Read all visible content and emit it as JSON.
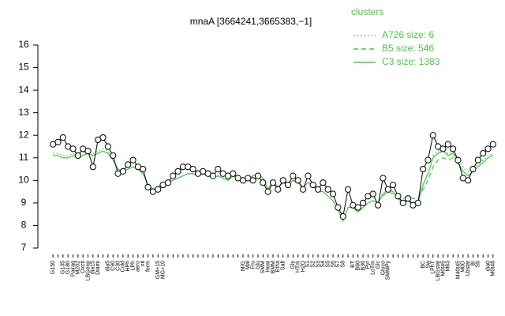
{
  "chart_data": {
    "type": "line",
    "title": "mnaA [3664241,3665383,−1]",
    "categories": [
      "G150",
      null,
      "G135",
      "G180",
      "Pairaq",
      "M202",
      "Oxctl",
      "LBGexp",
      "dia15",
      "Diami",
      null,
      "dia5",
      "C90",
      "C30",
      "Cold",
      "HPh",
      "LPh",
      "aero",
      "nit",
      "ferm",
      null,
      "GM+15",
      "MG+10",
      null,
      null,
      null,
      null,
      null,
      null,
      null,
      null,
      null,
      null,
      null,
      null,
      null,
      null,
      null,
      "M/G",
      "Mal",
      "Fru",
      "Glu",
      "SMM",
      "Heat",
      "BMM",
      "Etha",
      "Salt",
      null,
      "Gly",
      "HTm",
      "H2O",
      "S1",
      "S2",
      "S3",
      "S4",
      "S5",
      "S6",
      "S7",
      "S8",
      null,
      "BT",
      "B60",
      "B36",
      "Pyr",
      "LoTm",
      "Glc",
      "Gluco",
      "SMMPy",
      null,
      null,
      null,
      null,
      null,
      null,
      "BC",
      "Sw",
      "LPhT",
      "LBGstat",
      "M0t45",
      "M63",
      null,
      "M40t45",
      "M0D",
      "Lbstat",
      "BI",
      "Sb",
      null,
      "dia0",
      "M0t48"
    ],
    "values": [
      11.6,
      11.7,
      11.9,
      11.5,
      11.4,
      11.1,
      11.4,
      11.3,
      10.6,
      11.8,
      11.9,
      11.5,
      11.1,
      10.3,
      10.4,
      10.7,
      10.9,
      10.6,
      10.5,
      9.7,
      9.5,
      9.6,
      9.8,
      9.9,
      10.2,
      10.4,
      10.6,
      10.6,
      10.5,
      10.3,
      10.4,
      10.3,
      10.2,
      10.5,
      10.3,
      10.2,
      10.3,
      10.1,
      10.0,
      10.1,
      10.0,
      10.2,
      9.9,
      9.5,
      9.9,
      9.6,
      10.0,
      9.8,
      10.2,
      10.0,
      9.6,
      10.2,
      9.8,
      9.6,
      9.9,
      9.6,
      9.4,
      8.8,
      8.4,
      9.6,
      8.9,
      8.8,
      9.0,
      9.3,
      9.4,
      8.9,
      10.1,
      9.6,
      9.8,
      9.3,
      9.0,
      9.2,
      8.9,
      9.0,
      10.5,
      10.9,
      12.0,
      11.5,
      11.4,
      11.6,
      11.4,
      10.9,
      10.1,
      10.0,
      10.5,
      10.9,
      11.2,
      11.4,
      11.6
    ],
    "color": "#000000",
    "legend_title": "clusters",
    "legend": "topright",
    "series": [
      {
        "name": "A726 size: 6",
        "color": "#44cc44",
        "linestyle": "dotted",
        "values": [
          11.2,
          11.2,
          11.1,
          11.1,
          11.2,
          11.1,
          11.2,
          11.3,
          11.2,
          11.3,
          11.4,
          11.3,
          11.0,
          null,
          null,
          null,
          null,
          null,
          null,
          null,
          null,
          null,
          null,
          null,
          null,
          null,
          null,
          null,
          null,
          null,
          null,
          null,
          null,
          null,
          null,
          null,
          null,
          null,
          null,
          null,
          null,
          null,
          null,
          null,
          null,
          null,
          null,
          null,
          null,
          null,
          null,
          null,
          null,
          null,
          null,
          null,
          null,
          null,
          null,
          null,
          null,
          null,
          null,
          null,
          null,
          null,
          null,
          null,
          null,
          null,
          null,
          null,
          null,
          null,
          null,
          null,
          11.1,
          11.3,
          11.4,
          11.2,
          11.3,
          10.9,
          10.6,
          10.4,
          10.5,
          10.7,
          10.9,
          11.1,
          11.2
        ]
      },
      {
        "name": "B5 size: 546",
        "color": "#44cc44",
        "linestyle": "dashed",
        "values": [
          null,
          null,
          null,
          null,
          null,
          null,
          null,
          null,
          null,
          null,
          null,
          null,
          null,
          null,
          null,
          null,
          null,
          null,
          null,
          null,
          null,
          null,
          null,
          null,
          null,
          null,
          null,
          null,
          null,
          null,
          null,
          null,
          null,
          null,
          null,
          null,
          null,
          null,
          null,
          null,
          null,
          null,
          null,
          null,
          null,
          null,
          null,
          null,
          null,
          null,
          null,
          null,
          null,
          null,
          null,
          null,
          null,
          null,
          null,
          null,
          null,
          null,
          null,
          null,
          null,
          null,
          9.3,
          9.5,
          9.4,
          9.3,
          9.2,
          9.3,
          9.2,
          9.2,
          9.6,
          10.0,
          10.6,
          10.9,
          11.0,
          10.9,
          11.0,
          10.7,
          null,
          null,
          null,
          null,
          null,
          null,
          null
        ]
      },
      {
        "name": "C3 size: 1383",
        "color": "#44cc44",
        "linestyle": "solid",
        "values": [
          11.1,
          11.1,
          11.0,
          11.0,
          11.1,
          11.0,
          11.1,
          11.2,
          11.1,
          11.2,
          11.3,
          11.2,
          10.9,
          10.5,
          10.4,
          10.5,
          10.6,
          10.5,
          10.3,
          9.8,
          9.6,
          9.7,
          9.9,
          9.9,
          10.0,
          10.1,
          10.2,
          10.3,
          10.3,
          10.2,
          10.3,
          10.2,
          10.1,
          10.2,
          10.1,
          10.0,
          10.2,
          10.1,
          10.0,
          10.1,
          10.2,
          10.3,
          10.1,
          9.6,
          10.0,
          9.7,
          9.9,
          9.8,
          10.0,
          9.9,
          9.7,
          9.9,
          9.8,
          9.5,
          9.5,
          9.3,
          9.1,
          8.7,
          8.2,
          8.8,
          8.8,
          8.6,
          8.8,
          9.0,
          9.1,
          9.0,
          9.4,
          9.6,
          9.5,
          9.2,
          9.0,
          9.1,
          8.9,
          9.0,
          9.8,
          10.3,
          11.0,
          11.2,
          11.3,
          11.1,
          11.2,
          10.8,
          10.4,
          10.2,
          10.4,
          10.6,
          10.8,
          11.0,
          11.1
        ]
      }
    ],
    "ylim": [
      7,
      16
    ],
    "yticks": [
      7,
      8,
      9,
      10,
      11,
      12,
      13,
      14,
      15,
      16
    ]
  }
}
